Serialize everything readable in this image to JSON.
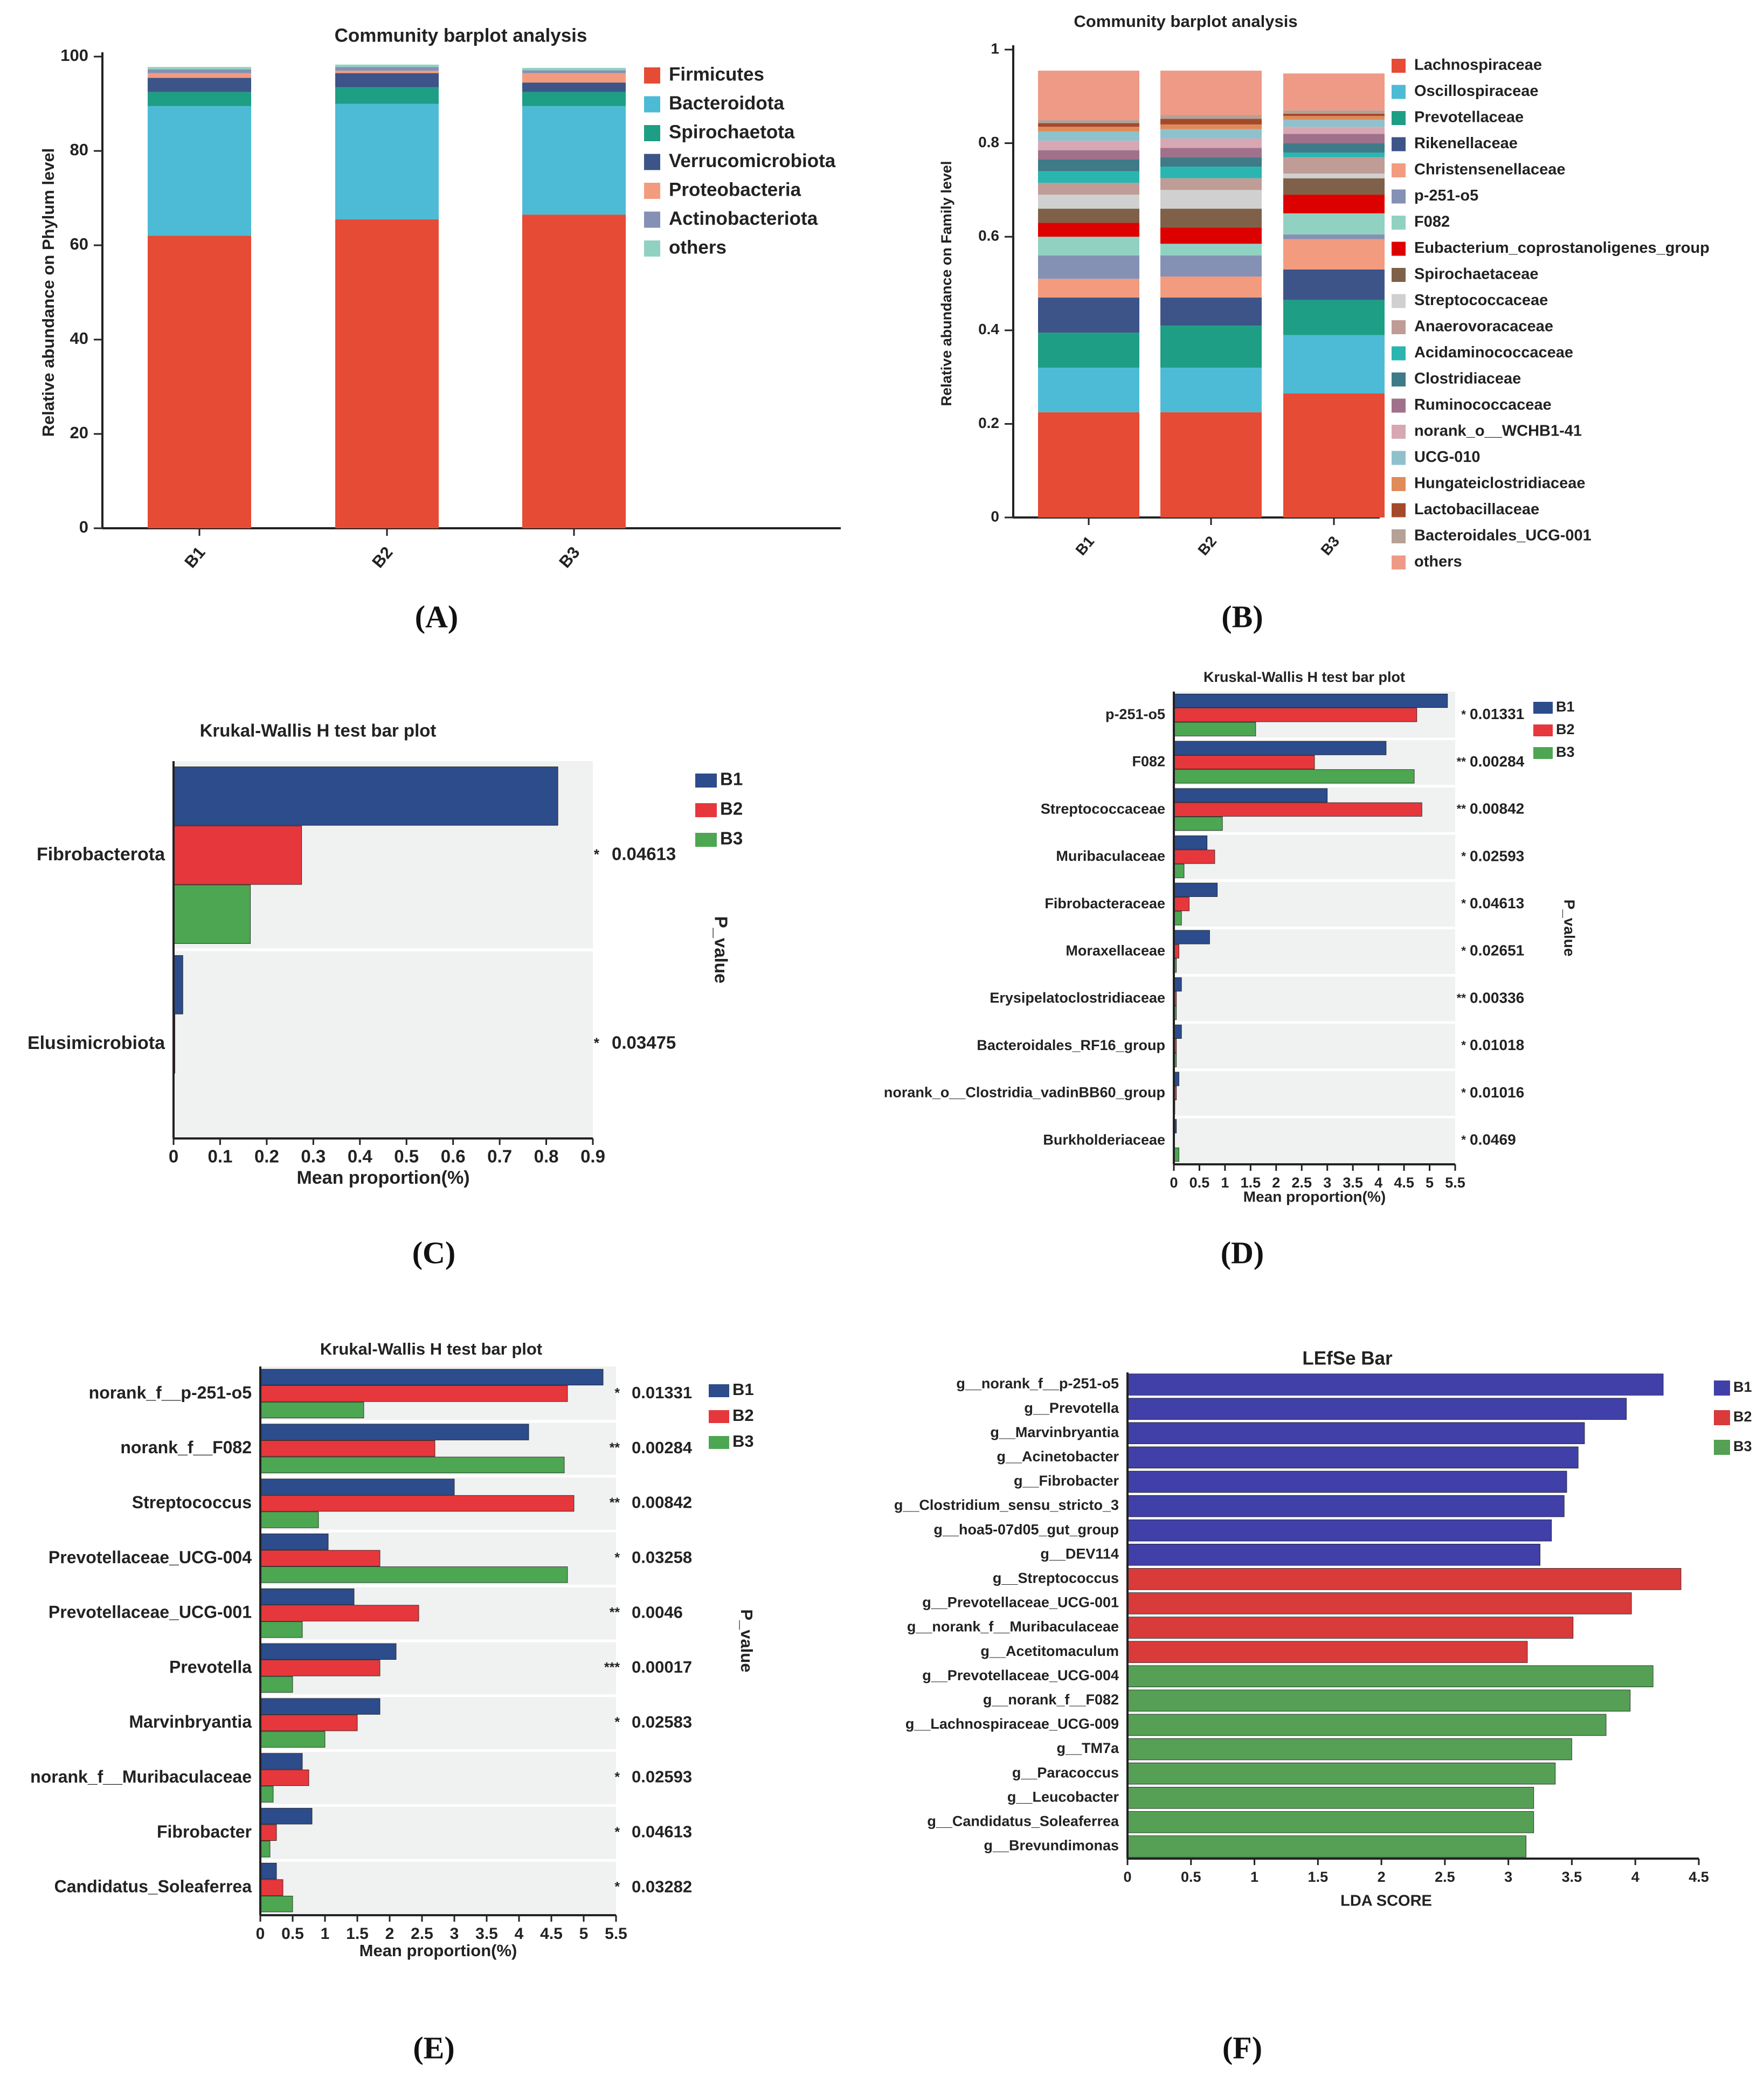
{
  "figure": {
    "panel_labels": [
      "(A)",
      "(B)",
      "(C)",
      "(D)",
      "(E)",
      "(F)"
    ]
  },
  "chart_data": [
    {
      "id": "A",
      "type": "stacked-bar",
      "title": "Community barplot analysis",
      "ylabel": "Relative abundance on Phylum level",
      "xlabel": "",
      "ylim": [
        0,
        100
      ],
      "yticks": [
        0,
        20,
        40,
        60,
        80,
        100
      ],
      "categories": [
        "B1",
        "B2",
        "B3"
      ],
      "series": [
        {
          "name": "Firmicutes",
          "color": "#E64B35",
          "values": [
            62,
            65.5,
            66.5
          ]
        },
        {
          "name": "Bacteroidota",
          "color": "#4DBBD5",
          "values": [
            27.5,
            24.5,
            23
          ]
        },
        {
          "name": "Spirochaetota",
          "color": "#1E9E84",
          "values": [
            3,
            3.5,
            3
          ]
        },
        {
          "name": "Verrucomicrobiota",
          "color": "#3C5488",
          "values": [
            3,
            3,
            2
          ]
        },
        {
          "name": "Proteobacteria",
          "color": "#F39B7F",
          "values": [
            1,
            0.5,
            2
          ]
        },
        {
          "name": "Actinobacteriota",
          "color": "#8491B4",
          "values": [
            0.8,
            0.8,
            0.6
          ]
        },
        {
          "name": "others",
          "color": "#91D1C2",
          "values": [
            0.5,
            0.5,
            0.5
          ]
        }
      ]
    },
    {
      "id": "B",
      "type": "stacked-bar",
      "title": "Community barplot analysis",
      "ylabel": "Relative abundance on Family level",
      "xlabel": "",
      "ylim": [
        0,
        1
      ],
      "yticks": [
        0,
        0.2,
        0.4,
        0.6,
        0.8,
        1
      ],
      "ytick_labels": [
        "0",
        "0.2",
        "0.4",
        "0.6",
        "0.8",
        "1"
      ],
      "categories": [
        "B1",
        "B2",
        "B3"
      ],
      "series": [
        {
          "name": "Lachnospiraceae",
          "color": "#E64B35",
          "values": [
            0.225,
            0.225,
            0.265
          ]
        },
        {
          "name": "Oscillospiraceae",
          "color": "#4DBBD5",
          "values": [
            0.095,
            0.095,
            0.125
          ]
        },
        {
          "name": "Prevotellaceae",
          "color": "#1E9E84",
          "values": [
            0.075,
            0.09,
            0.075
          ]
        },
        {
          "name": "Rikenellaceae",
          "color": "#3C5488",
          "values": [
            0.075,
            0.06,
            0.065
          ]
        },
        {
          "name": "Christensenellaceae",
          "color": "#F39B7F",
          "values": [
            0.04,
            0.045,
            0.065
          ]
        },
        {
          "name": "p-251-o5",
          "color": "#8491B4",
          "values": [
            0.05,
            0.045,
            0.01
          ]
        },
        {
          "name": "F082",
          "color": "#91D1C2",
          "values": [
            0.04,
            0.025,
            0.045
          ]
        },
        {
          "name": "Eubacterium_coprostanoligenes_group",
          "color": "#DC0000",
          "values": [
            0.03,
            0.035,
            0.04
          ]
        },
        {
          "name": "Spirochaetaceae",
          "color": "#7E6148",
          "values": [
            0.03,
            0.04,
            0.035
          ]
        },
        {
          "name": "Streptococcaceae",
          "color": "#D0D0D0",
          "values": [
            0.03,
            0.04,
            0.01
          ]
        },
        {
          "name": "Anaerovoracaceae",
          "color": "#C09C96",
          "values": [
            0.025,
            0.025,
            0.035
          ]
        },
        {
          "name": "Acidaminococcaceae",
          "color": "#2AB5B0",
          "values": [
            0.025,
            0.025,
            0.01
          ]
        },
        {
          "name": "Clostridiaceae",
          "color": "#3E7A87",
          "values": [
            0.025,
            0.02,
            0.02
          ]
        },
        {
          "name": "Ruminococcaceae",
          "color": "#A0718A",
          "values": [
            0.02,
            0.02,
            0.02
          ]
        },
        {
          "name": "norank_o__WCHB1-41",
          "color": "#D7A8B4",
          "values": [
            0.02,
            0.02,
            0.015
          ]
        },
        {
          "name": "UCG-010",
          "color": "#8FC1CC",
          "values": [
            0.02,
            0.02,
            0.015
          ]
        },
        {
          "name": "Hungateiclostridiaceae",
          "color": "#E08B5A",
          "values": [
            0.01,
            0.01,
            0.008
          ]
        },
        {
          "name": "Lactobacillaceae",
          "color": "#A44A2B",
          "values": [
            0.008,
            0.012,
            0.005
          ]
        },
        {
          "name": "Bacteroidales_UCG-001",
          "color": "#B5A196",
          "values": [
            0.007,
            0.008,
            0.007
          ]
        },
        {
          "name": "others",
          "color": "#EE9A86",
          "values": [
            0.105,
            0.095,
            0.079
          ]
        }
      ]
    },
    {
      "id": "C",
      "type": "grouped-hbar",
      "title": "Krukal-Wallis H test bar plot",
      "xlabel": "Mean proportion(%)",
      "pvalue_label": "P_value",
      "xlim": [
        0,
        0.9
      ],
      "xticks": [
        0,
        0.1,
        0.2,
        0.3,
        0.4,
        0.5,
        0.6,
        0.7,
        0.8,
        0.9
      ],
      "legend": [
        {
          "name": "B1",
          "color": "#2C4C8C"
        },
        {
          "name": "B2",
          "color": "#E6373C"
        },
        {
          "name": "B3",
          "color": "#4DA651"
        }
      ],
      "categories": [
        "Fibrobacterota",
        "Elusimicrobiota"
      ],
      "pvalues": [
        "0.04613",
        "0.03475"
      ],
      "stars": [
        "*",
        "*"
      ],
      "series": [
        {
          "name": "B1",
          "values": [
            0.825,
            0.02
          ]
        },
        {
          "name": "B2",
          "values": [
            0.275,
            0.003
          ]
        },
        {
          "name": "B3",
          "values": [
            0.165,
            0.0
          ]
        }
      ]
    },
    {
      "id": "D",
      "type": "grouped-hbar",
      "title": "Kruskal-Wallis H test bar plot",
      "xlabel": "Mean proportion(%)",
      "pvalue_label": "P_value",
      "xlim": [
        0,
        5.5
      ],
      "xticks": [
        0,
        0.5,
        1,
        1.5,
        2,
        2.5,
        3,
        3.5,
        4,
        4.5,
        5,
        5.5
      ],
      "legend": [
        {
          "name": "B1",
          "color": "#2C4C8C"
        },
        {
          "name": "B2",
          "color": "#E6373C"
        },
        {
          "name": "B3",
          "color": "#4DA651"
        }
      ],
      "categories": [
        "p-251-o5",
        "F082",
        "Streptococcaceae",
        "Muribaculaceae",
        "Fibrobacteraceae",
        "Moraxellaceae",
        "Erysipelatoclostridiaceae",
        "Bacteroidales_RF16_group",
        "norank_o__Clostridia_vadinBB60_group",
        "Burkholderiaceae"
      ],
      "pvalues": [
        "0.01331",
        "0.00284",
        "0.00842",
        "0.02593",
        "0.04613",
        "0.02651",
        "0.00336",
        "0.01018",
        "0.01016",
        "0.0469"
      ],
      "stars": [
        "*",
        "**",
        "**",
        "*",
        "*",
        "*",
        "**",
        "*",
        "*",
        "*"
      ],
      "series": [
        {
          "name": "B1",
          "values": [
            5.35,
            4.15,
            3.0,
            0.65,
            0.85,
            0.7,
            0.15,
            0.15,
            0.1,
            0.05
          ]
        },
        {
          "name": "B2",
          "values": [
            4.75,
            2.75,
            4.85,
            0.8,
            0.3,
            0.1,
            0.05,
            0.05,
            0.05,
            0.0
          ]
        },
        {
          "name": "B3",
          "values": [
            1.6,
            4.7,
            0.95,
            0.2,
            0.15,
            0.05,
            0.05,
            0.05,
            0.02,
            0.1
          ]
        }
      ]
    },
    {
      "id": "E",
      "type": "grouped-hbar",
      "title": "Krukal-Wallis H test bar plot",
      "xlabel": "Mean proportion(%)",
      "pvalue_label": "P_value",
      "xlim": [
        0,
        5.5
      ],
      "xticks": [
        0,
        0.5,
        1,
        1.5,
        2,
        2.5,
        3,
        3.5,
        4,
        4.5,
        5,
        5.5
      ],
      "legend": [
        {
          "name": "B1",
          "color": "#2C4C8C"
        },
        {
          "name": "B2",
          "color": "#E6373C"
        },
        {
          "name": "B3",
          "color": "#4DA651"
        }
      ],
      "categories": [
        "norank_f__p-251-o5",
        "norank_f__F082",
        "Streptococcus",
        "Prevotellaceae_UCG-004",
        "Prevotellaceae_UCG-001",
        "Prevotella",
        "Marvinbryantia",
        "norank_f__Muribaculaceae",
        "Fibrobacter",
        "Candidatus_Soleaferrea"
      ],
      "pvalues": [
        "0.01331",
        "0.00284",
        "0.00842",
        "0.03258",
        "0.0046",
        "0.00017",
        "0.02583",
        "0.02593",
        "0.04613",
        "0.03282"
      ],
      "stars": [
        "*",
        "**",
        "**",
        "*",
        "**",
        "***",
        "*",
        "*",
        "*",
        "*"
      ],
      "series": [
        {
          "name": "B1",
          "values": [
            5.3,
            4.15,
            3.0,
            1.05,
            1.45,
            2.1,
            1.85,
            0.65,
            0.8,
            0.25
          ]
        },
        {
          "name": "B2",
          "values": [
            4.75,
            2.7,
            4.85,
            1.85,
            2.45,
            1.85,
            1.5,
            0.75,
            0.25,
            0.35
          ]
        },
        {
          "name": "B3",
          "values": [
            1.6,
            4.7,
            0.9,
            4.75,
            0.65,
            0.5,
            1.0,
            0.2,
            0.15,
            0.5
          ]
        }
      ]
    },
    {
      "id": "F",
      "type": "hbar",
      "title": "LEfSe Bar",
      "xlabel": "LDA SCORE",
      "xlim": [
        0,
        4.5
      ],
      "xticks": [
        0,
        0.5,
        1,
        1.5,
        2,
        2.5,
        3,
        3.5,
        4,
        4.5
      ],
      "legend": [
        {
          "name": "B1",
          "color": "#4040A8"
        },
        {
          "name": "B2",
          "color": "#D93A3A"
        },
        {
          "name": "B3",
          "color": "#55A055"
        }
      ],
      "categories": [
        "g__norank_f__p-251-o5",
        "g__Prevotella",
        "g__Marvinbryantia",
        "g__Acinetobacter",
        "g__Fibrobacter",
        "g__Clostridium_sensu_stricto_3",
        "g__hoa5-07d05_gut_group",
        "g__DEV114",
        "g__Streptococcus",
        "g__Prevotellaceae_UCG-001",
        "g__norank_f__Muribaculaceae",
        "g__Acetitomaculum",
        "g__Prevotellaceae_UCG-004",
        "g__norank_f__F082",
        "g__Lachnospiraceae_UCG-009",
        "g__TM7a",
        "g__Paracoccus",
        "g__Leucobacter",
        "g__Candidatus_Soleaferrea",
        "g__Brevundimonas"
      ],
      "groups": [
        "B1",
        "B1",
        "B1",
        "B1",
        "B1",
        "B1",
        "B1",
        "B1",
        "B2",
        "B2",
        "B2",
        "B2",
        "B3",
        "B3",
        "B3",
        "B3",
        "B3",
        "B3",
        "B3",
        "B3"
      ],
      "values": [
        4.22,
        3.93,
        3.6,
        3.55,
        3.46,
        3.44,
        3.34,
        3.25,
        4.36,
        3.97,
        3.51,
        3.15,
        4.14,
        3.96,
        3.77,
        3.5,
        3.37,
        3.2,
        3.2,
        3.14
      ]
    }
  ]
}
